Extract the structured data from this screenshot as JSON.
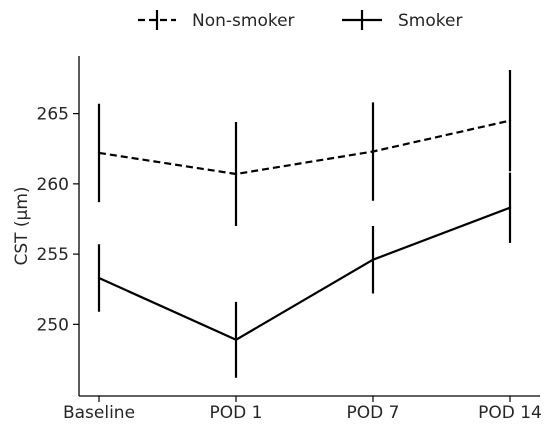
{
  "chart_data": {
    "type": "line",
    "categories": [
      "Baseline",
      "POD 1",
      "POD 7",
      "POD 14"
    ],
    "ylabel": "CST (μm)",
    "xlabel": "",
    "ylim": [
      244.9,
      269.1
    ],
    "yticks": [
      250,
      255,
      260,
      265
    ],
    "ytick_labels": [
      "250",
      "255",
      "260",
      "265"
    ],
    "grid": false,
    "legend_position": "top-center",
    "series": [
      {
        "name": "Non-smoker",
        "line_style": "dashed",
        "color": "#000000",
        "values": [
          262.2,
          260.7,
          262.3,
          264.5
        ],
        "error": [
          3.5,
          3.7,
          3.5,
          3.6
        ]
      },
      {
        "name": "Smoker",
        "line_style": "solid",
        "color": "#000000",
        "values": [
          253.3,
          248.9,
          254.6,
          258.3
        ],
        "error": [
          2.4,
          2.7,
          2.4,
          2.5
        ]
      }
    ]
  }
}
